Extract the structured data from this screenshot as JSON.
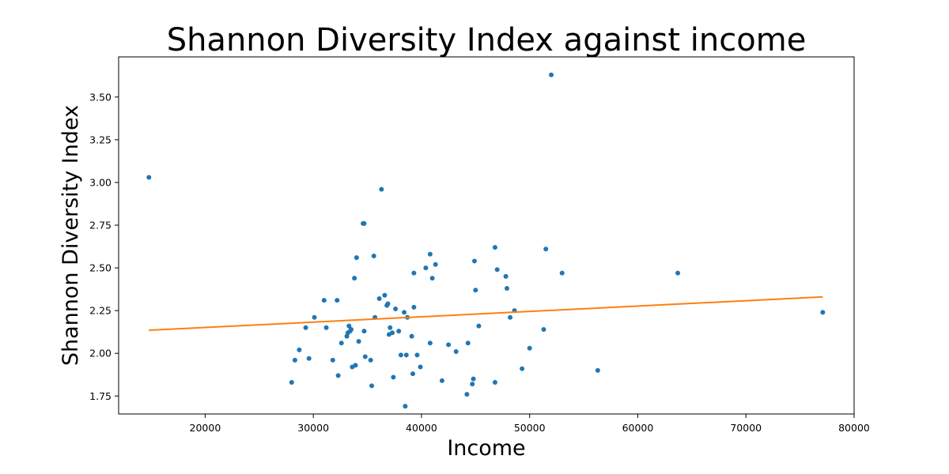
{
  "chart_data": {
    "type": "scatter",
    "title": "Shannon Diversity Index against income",
    "xlabel": "Income",
    "ylabel": "Shannon Diversity Index",
    "xlim": [
      12000,
      80000
    ],
    "ylim": [
      1.645,
      3.735
    ],
    "xticks": [
      20000,
      30000,
      40000,
      50000,
      60000,
      70000,
      80000
    ],
    "yticks": [
      1.75,
      2.0,
      2.25,
      2.5,
      2.75,
      3.0,
      3.25,
      3.5
    ],
    "ytick_labels": [
      "1.75",
      "2.00",
      "2.25",
      "2.50",
      "2.75",
      "3.00",
      "3.25",
      "3.50"
    ],
    "grid": false,
    "colors": {
      "points": "#1f77b4",
      "trend": "#ff7f0e"
    },
    "series": [
      {
        "kind": "points",
        "x": [
          14800,
          28000,
          28300,
          28700,
          29300,
          29600,
          30100,
          31000,
          31200,
          31800,
          32200,
          32300,
          32600,
          33100,
          33200,
          33300,
          33400,
          33500,
          33600,
          33800,
          33900,
          34000,
          34200,
          34600,
          34700,
          34700,
          34800,
          35300,
          35400,
          35600,
          35700,
          36100,
          36300,
          36600,
          36800,
          36900,
          37000,
          37100,
          37300,
          37400,
          37600,
          37900,
          38100,
          38400,
          38500,
          38600,
          38700,
          39100,
          39200,
          39300,
          39300,
          39600,
          39900,
          40400,
          40800,
          40800,
          41000,
          41300,
          41900,
          42500,
          43200,
          44200,
          44300,
          44700,
          44800,
          44900,
          45000,
          45300,
          46800,
          46800,
          47000,
          47800,
          47900,
          48200,
          48600,
          49300,
          50000,
          51300,
          51500,
          52000,
          53000,
          56300,
          63700,
          77100
        ],
        "y": [
          3.03,
          1.83,
          1.96,
          2.02,
          2.15,
          1.97,
          2.21,
          2.31,
          2.15,
          1.96,
          2.31,
          1.87,
          2.06,
          2.1,
          2.12,
          2.16,
          2.13,
          2.14,
          1.92,
          2.44,
          1.93,
          2.56,
          2.07,
          2.76,
          2.76,
          2.13,
          1.98,
          1.96,
          1.81,
          2.57,
          2.21,
          2.32,
          2.96,
          2.34,
          2.28,
          2.29,
          2.11,
          2.15,
          2.12,
          1.86,
          2.26,
          2.13,
          1.99,
          2.24,
          1.69,
          1.99,
          2.21,
          2.1,
          1.88,
          2.27,
          2.47,
          1.99,
          1.92,
          2.5,
          2.58,
          2.06,
          2.44,
          2.52,
          1.84,
          2.05,
          2.01,
          1.76,
          2.06,
          1.82,
          1.85,
          2.54,
          2.37,
          2.16,
          1.83,
          2.62,
          2.49,
          2.45,
          2.38,
          2.21,
          2.25,
          1.91,
          2.03,
          2.14,
          2.61,
          3.63,
          2.47,
          1.9,
          2.47,
          2.24
        ]
      },
      {
        "kind": "trendline",
        "x": [
          14800,
          77100
        ],
        "y": [
          2.135,
          2.33
        ]
      }
    ]
  }
}
